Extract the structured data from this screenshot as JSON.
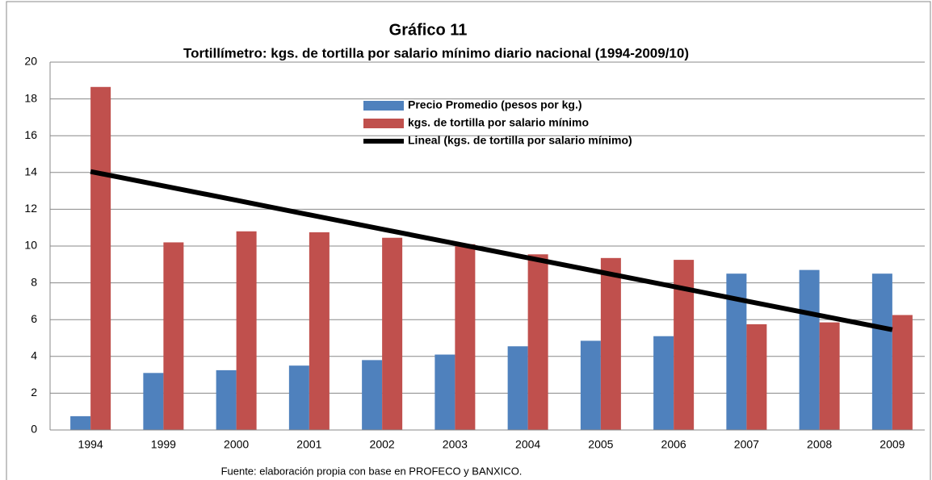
{
  "chart_data": {
    "type": "bar",
    "title": "Gráfico 11",
    "subtitle": "Tortillímetro: kgs. de tortilla por salario mínimo diario nacional (1994-2009/10)",
    "source": "Fuente: elaboración propia con base en PROFECO y BANXICO.",
    "categories": [
      "1994",
      "1999",
      "2000",
      "2001",
      "2002",
      "2003",
      "2004",
      "2005",
      "2006",
      "2007",
      "2008",
      "2009"
    ],
    "series": [
      {
        "name": "Precio Promedio (pesos por kg.)",
        "type": "bar",
        "color": "#4f81bd",
        "values": [
          0.75,
          3.1,
          3.25,
          3.5,
          3.8,
          4.1,
          4.55,
          4.85,
          5.1,
          8.5,
          8.7,
          8.5
        ]
      },
      {
        "name": "kgs. de tortilla por salario mínimo",
        "type": "bar",
        "color": "#c0504d",
        "values": [
          18.65,
          10.2,
          10.8,
          10.75,
          10.45,
          10.1,
          9.55,
          9.35,
          9.25,
          5.75,
          5.85,
          6.25
        ]
      },
      {
        "name": "Lineal (kgs. de tortilla por salario mínimo)",
        "type": "line",
        "color": "#000000",
        "values": [
          14.05,
          13.27,
          12.49,
          11.7,
          10.92,
          10.14,
          9.36,
          8.58,
          7.8,
          7.01,
          6.23,
          5.45
        ]
      }
    ],
    "ylim": [
      0,
      20
    ],
    "yticks": [
      0,
      2,
      4,
      6,
      8,
      10,
      12,
      14,
      16,
      18,
      20
    ],
    "grid": true
  }
}
